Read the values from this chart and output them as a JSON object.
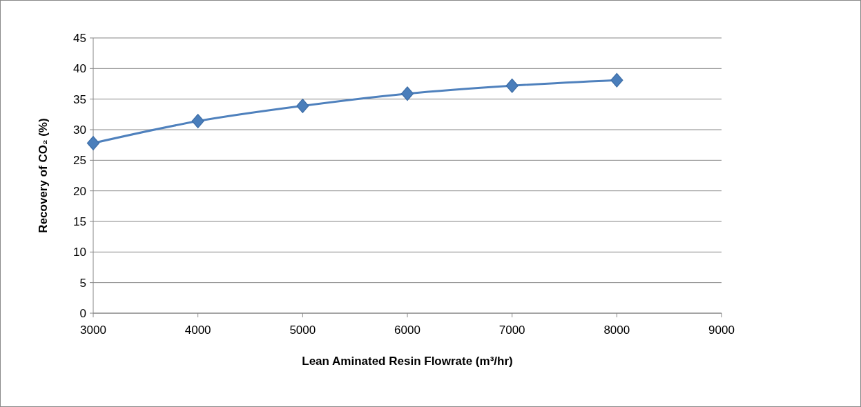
{
  "chart_data": {
    "type": "line",
    "xlabel": "Lean Aminated Resin Flowrate (m³/hr)",
    "ylabel": "Recovery of CO₂ (%)",
    "x": [
      3000,
      4000,
      5000,
      6000,
      7000,
      8000
    ],
    "series": [
      {
        "color": "#4f81bd",
        "values": [
          27.8,
          31.4,
          33.9,
          35.9,
          37.2,
          38.1
        ]
      }
    ],
    "xlim": [
      3000,
      9000
    ],
    "xticks": [
      3000,
      4000,
      5000,
      6000,
      7000,
      8000,
      9000
    ],
    "ylim": [
      0,
      45
    ],
    "yticks": [
      0,
      5,
      10,
      15,
      20,
      25,
      30,
      35,
      40,
      45
    ],
    "grid": "y",
    "marker": "diamond",
    "line_style": "solid"
  }
}
